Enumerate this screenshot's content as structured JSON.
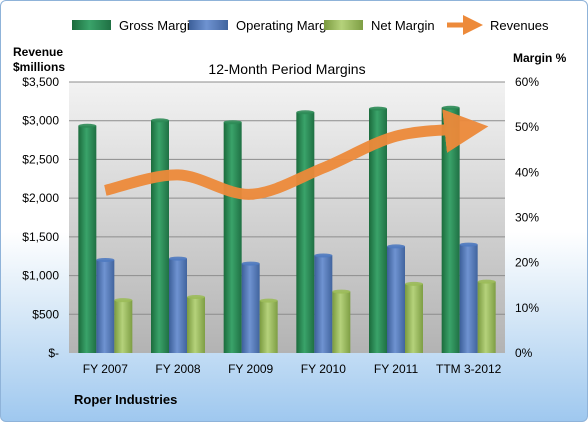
{
  "company": "Roper Industries",
  "chart_data": {
    "type": "bar",
    "title": "12-Month Period Margins",
    "categories": [
      "FY 2007",
      "FY 2008",
      "FY 2009",
      "FY 2010",
      "FY 2011",
      "TTM 3-2012"
    ],
    "left_axis": {
      "label_line1": "Revenue",
      "label_line2": "$millions",
      "range": [
        0,
        3500
      ],
      "ticks": [
        {
          "value": 0,
          "label": "$-"
        },
        {
          "value": 500,
          "label": "$500"
        },
        {
          "value": 1000,
          "label": "$1,000"
        },
        {
          "value": 1500,
          "label": "$1,500"
        },
        {
          "value": 2000,
          "label": "$2,000"
        },
        {
          "value": 2500,
          "label": "$2,500"
        },
        {
          "value": 3000,
          "label": "$3,000"
        },
        {
          "value": 3500,
          "label": "$3,500"
        }
      ]
    },
    "right_axis": {
      "label": "Margin %",
      "range": [
        0,
        60
      ],
      "ticks": [
        {
          "value": 0,
          "label": "0%"
        },
        {
          "value": 10,
          "label": "10%"
        },
        {
          "value": 20,
          "label": "20%"
        },
        {
          "value": 30,
          "label": "30%"
        },
        {
          "value": 40,
          "label": "40%"
        },
        {
          "value": 50,
          "label": "50%"
        },
        {
          "value": 60,
          "label": "60%"
        }
      ]
    },
    "legend_position": "top",
    "grid": true,
    "series": [
      {
        "name": "Gross Margin",
        "type": "bar",
        "axis": "right",
        "color": "#2e8b57",
        "values": [
          50.3,
          51.5,
          51.1,
          53.3,
          54.1,
          54.3
        ]
      },
      {
        "name": "Operating Margin",
        "type": "bar",
        "axis": "right",
        "color": "#4f7ac0",
        "values": [
          20.6,
          20.9,
          19.8,
          21.6,
          23.6,
          24.0
        ]
      },
      {
        "name": "Net Margin",
        "type": "bar",
        "axis": "right",
        "color": "#9bbb59",
        "values": [
          11.7,
          12.4,
          11.6,
          13.6,
          15.3,
          15.8
        ]
      },
      {
        "name": "Revenues",
        "type": "line",
        "axis": "left",
        "color": "#ed8a3a",
        "values": [
          2100,
          2300,
          2050,
          2390,
          2800,
          2900
        ]
      }
    ]
  }
}
